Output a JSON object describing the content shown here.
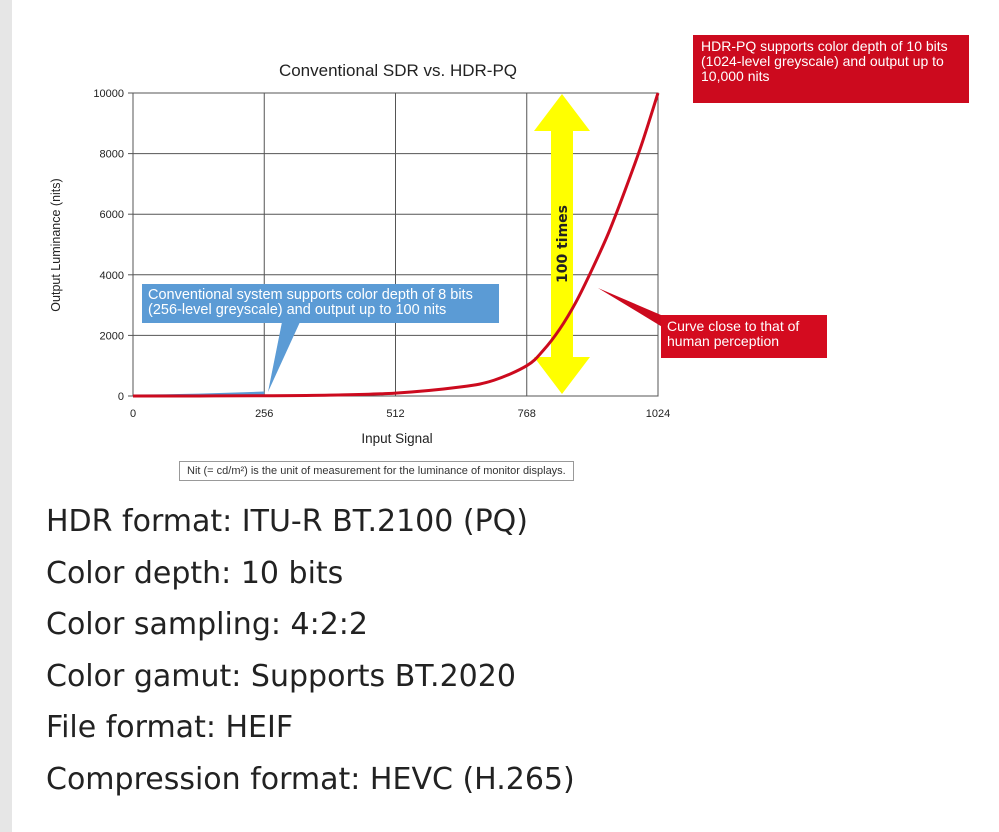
{
  "chart_data": {
    "type": "line",
    "title": "Conventional SDR vs. HDR-PQ",
    "xlabel": "Input Signal",
    "ylabel": "Output Luminance (nits)",
    "xlim": [
      0,
      1024
    ],
    "ylim": [
      0,
      10000
    ],
    "x_ticks": [
      "0",
      "256",
      "512",
      "768",
      "1024"
    ],
    "y_ticks": [
      "0",
      "2000",
      "4000",
      "6000",
      "8000",
      "10000"
    ],
    "grid": true,
    "colors": {
      "sdr": "#5b9bd5",
      "hdr": "#cc0a1e",
      "arrow": "#ffff00"
    },
    "series": [
      {
        "x": [
          0,
          64,
          128,
          192,
          256
        ],
        "y": [
          0,
          10,
          30,
          60,
          100
        ]
      },
      {
        "x": [
          0,
          128,
          256,
          384,
          512,
          640,
          704,
          768,
          800,
          832,
          864,
          896,
          928,
          960,
          992,
          1024
        ],
        "y": [
          0,
          2,
          8,
          30,
          95,
          300,
          520,
          1000,
          1500,
          2200,
          3100,
          4200,
          5400,
          6800,
          8300,
          10000
        ]
      }
    ],
    "annotations": {
      "sdr_callout": "Conventional system supports color depth of 8 bits (256-level greyscale) and output up to 100 nits",
      "hdr_callout": "HDR-PQ supports color depth of 10 bits (1024-level greyscale) and output up to 10,000 nits",
      "curve_callout": "Curve close to that of human perception",
      "arrow_label": "100 times",
      "footnote": "Nit (= cd/m²) is the unit of measurement for the luminance of monitor displays."
    }
  },
  "specs": [
    "HDR format: ITU-R BT.2100 (PQ)",
    "Color depth: 10 bits",
    "Color sampling: 4:2:2",
    "Color gamut: Supports BT.2020",
    "File format: HEIF",
    "Compression format: HEVC (H.265)"
  ]
}
